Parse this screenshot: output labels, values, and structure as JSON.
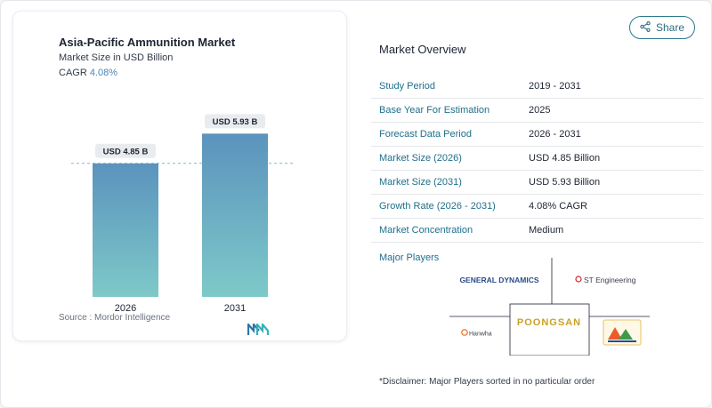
{
  "chart": {
    "title": "Asia-Pacific Ammunition Market",
    "subtitle": "Market Size in USD Billion",
    "cagr_label": "CAGR",
    "cagr_value": "4.08%",
    "source": "Source :  Mordor Intelligence",
    "colors": {
      "bar_top": "#5b93bd",
      "bar_bottom": "#7ec9c9",
      "dashed": "#7fbcc8"
    }
  },
  "chart_data": {
    "type": "bar",
    "categories": [
      "2026",
      "2031"
    ],
    "values": [
      4.85,
      5.93
    ],
    "data_labels": [
      "USD 4.85 B",
      "USD 5.93 B"
    ],
    "ylim": [
      0,
      7.2
    ]
  },
  "share": {
    "label": "Share",
    "icon": "share-icon"
  },
  "overview": {
    "title": "Market Overview",
    "rows": [
      {
        "key": "Study Period",
        "value": "2019 - 2031"
      },
      {
        "key": "Base Year For Estimation",
        "value": "2025"
      },
      {
        "key": "Forecast Data Period",
        "value": "2026 - 2031"
      },
      {
        "key": "Market Size (2026)",
        "value": "USD 4.85 Billion"
      },
      {
        "key": "Market Size (2031)",
        "value": "USD 5.93 Billion"
      },
      {
        "key": "Growth Rate (2026 - 2031)",
        "value": "4.08% CAGR"
      },
      {
        "key": "Market Concentration",
        "value": "Medium"
      }
    ]
  },
  "players": {
    "title": "Major Players",
    "logos": [
      "GENERAL DYNAMICS",
      "ST Engineering",
      "POONGSAN",
      "Hanwha"
    ]
  },
  "disclaimer": "*Disclaimer: Major Players sorted in no particular order"
}
